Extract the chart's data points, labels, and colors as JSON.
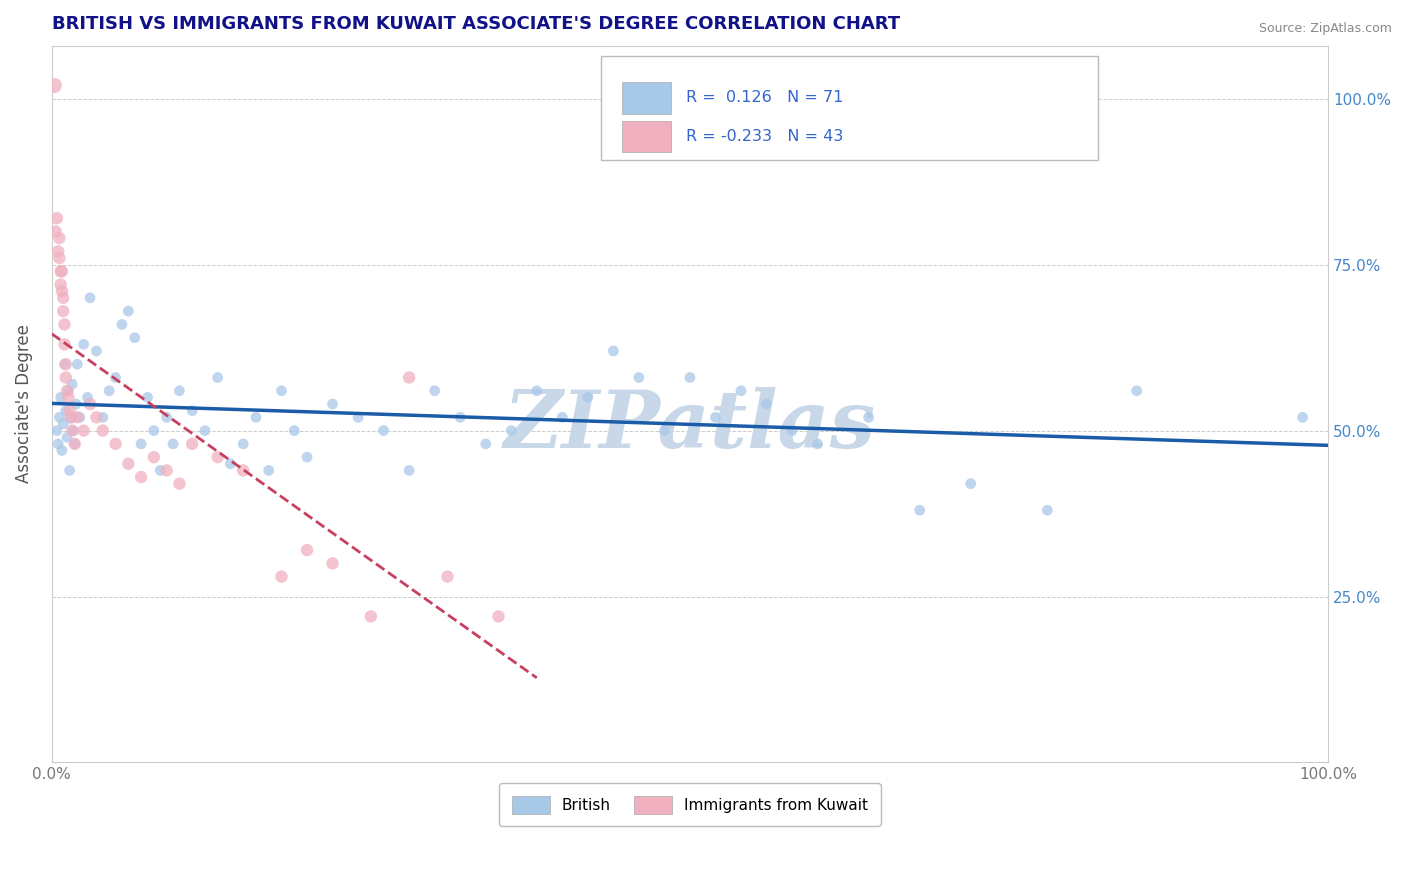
{
  "title": "BRITISH VS IMMIGRANTS FROM KUWAIT ASSOCIATE'S DEGREE CORRELATION CHART",
  "source_text": "Source: ZipAtlas.com",
  "ylabel": "Associate's Degree",
  "r_british": 0.126,
  "n_british": 71,
  "r_kuwait": -0.233,
  "n_kuwait": 43,
  "british_color": "#a8c8e8",
  "kuwait_color": "#f0b0c0",
  "british_line_color": "#1a5ca8",
  "kuwait_line_color": "#c84060",
  "legend_border_color": "#bbbbbb",
  "title_color": "#111188",
  "watermark": "ZIPatlas",
  "watermark_color": "#c8d8e8",
  "background_color": "#ffffff",
  "grid_color": "#cccccc",
  "xlim": [
    0.0,
    1.0
  ],
  "ylim": [
    0.0,
    1.08
  ],
  "british_x": [
    0.004,
    0.005,
    0.006,
    0.007,
    0.008,
    0.009,
    0.01,
    0.011,
    0.012,
    0.013,
    0.014,
    0.015,
    0.016,
    0.017,
    0.018,
    0.019,
    0.02,
    0.022,
    0.025,
    0.028,
    0.03,
    0.035,
    0.04,
    0.045,
    0.05,
    0.055,
    0.06,
    0.065,
    0.07,
    0.075,
    0.08,
    0.085,
    0.09,
    0.095,
    0.1,
    0.11,
    0.12,
    0.13,
    0.14,
    0.15,
    0.16,
    0.17,
    0.18,
    0.19,
    0.2,
    0.22,
    0.24,
    0.26,
    0.28,
    0.3,
    0.32,
    0.34,
    0.36,
    0.38,
    0.4,
    0.42,
    0.44,
    0.46,
    0.48,
    0.5,
    0.52,
    0.54,
    0.56,
    0.58,
    0.6,
    0.64,
    0.68,
    0.72,
    0.78,
    0.85,
    0.98
  ],
  "british_y": [
    0.5,
    0.48,
    0.52,
    0.55,
    0.47,
    0.51,
    0.6,
    0.53,
    0.49,
    0.56,
    0.44,
    0.52,
    0.57,
    0.5,
    0.48,
    0.54,
    0.6,
    0.52,
    0.63,
    0.55,
    0.7,
    0.62,
    0.52,
    0.56,
    0.58,
    0.66,
    0.68,
    0.64,
    0.48,
    0.55,
    0.5,
    0.44,
    0.52,
    0.48,
    0.56,
    0.53,
    0.5,
    0.58,
    0.45,
    0.48,
    0.52,
    0.44,
    0.56,
    0.5,
    0.46,
    0.54,
    0.52,
    0.5,
    0.44,
    0.56,
    0.52,
    0.48,
    0.5,
    0.56,
    0.52,
    0.55,
    0.62,
    0.58,
    0.5,
    0.58,
    0.52,
    0.56,
    0.54,
    0.5,
    0.48,
    0.52,
    0.38,
    0.42,
    0.38,
    0.56,
    0.52
  ],
  "british_sizes": [
    60,
    60,
    60,
    60,
    60,
    60,
    60,
    60,
    60,
    60,
    60,
    80,
    60,
    60,
    60,
    60,
    60,
    60,
    60,
    60,
    60,
    60,
    60,
    60,
    60,
    60,
    60,
    60,
    60,
    60,
    60,
    60,
    60,
    60,
    60,
    60,
    60,
    60,
    60,
    60,
    60,
    60,
    60,
    60,
    60,
    60,
    60,
    60,
    60,
    60,
    60,
    60,
    60,
    60,
    60,
    60,
    60,
    60,
    60,
    60,
    60,
    60,
    60,
    60,
    60,
    60,
    60,
    60,
    60,
    60,
    60
  ],
  "kuwait_x": [
    0.002,
    0.003,
    0.004,
    0.005,
    0.006,
    0.006,
    0.007,
    0.007,
    0.008,
    0.008,
    0.009,
    0.009,
    0.01,
    0.01,
    0.011,
    0.011,
    0.012,
    0.013,
    0.014,
    0.015,
    0.016,
    0.018,
    0.02,
    0.025,
    0.03,
    0.035,
    0.04,
    0.05,
    0.06,
    0.07,
    0.08,
    0.09,
    0.1,
    0.11,
    0.13,
    0.15,
    0.18,
    0.2,
    0.22,
    0.25,
    0.28,
    0.31,
    0.35
  ],
  "kuwait_y": [
    1.02,
    0.8,
    0.82,
    0.77,
    0.79,
    0.76,
    0.74,
    0.72,
    0.71,
    0.74,
    0.68,
    0.7,
    0.66,
    0.63,
    0.6,
    0.58,
    0.56,
    0.55,
    0.53,
    0.52,
    0.5,
    0.48,
    0.52,
    0.5,
    0.54,
    0.52,
    0.5,
    0.48,
    0.45,
    0.43,
    0.46,
    0.44,
    0.42,
    0.48,
    0.46,
    0.44,
    0.28,
    0.32,
    0.3,
    0.22,
    0.58,
    0.28,
    0.22
  ],
  "kuwait_sizes": [
    120,
    80,
    80,
    80,
    80,
    80,
    80,
    80,
    80,
    80,
    80,
    80,
    80,
    80,
    80,
    80,
    80,
    80,
    80,
    80,
    80,
    80,
    80,
    80,
    80,
    80,
    80,
    80,
    80,
    80,
    80,
    80,
    80,
    80,
    80,
    80,
    80,
    80,
    80,
    80,
    80,
    80,
    80
  ]
}
